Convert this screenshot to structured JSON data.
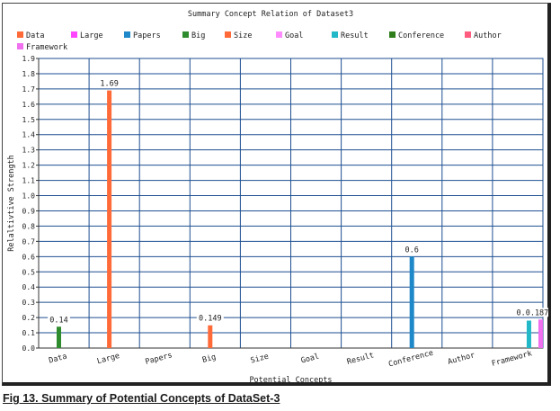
{
  "caption": "Fig 13. Summary of Potential Concepts of DataSet-3",
  "chart_data": {
    "type": "bar",
    "title": "Summary Concept Relation of Dataset3",
    "xlabel": "Potential Concepts",
    "ylabel": "Relaltivtive Strength",
    "ylim": [
      0,
      1.9
    ],
    "y_ticks": [
      "0.0",
      "0.1",
      "0.2",
      "0.3",
      "0.4",
      "0.5",
      "0.6",
      "0.7",
      "0.8",
      "0.9",
      "1.0",
      "1.1",
      "1.2",
      "1.3",
      "1.4",
      "1.5",
      "1.6",
      "1.7",
      "1.8",
      "1.9"
    ],
    "grid": true,
    "legend_position": "top",
    "categories": [
      "Data",
      "Large",
      "Papers",
      "Big",
      "Size",
      "Goal",
      "Result",
      "Conference",
      "Author",
      "Framework"
    ],
    "series": [
      {
        "name": "Data",
        "color": "#ff6a38",
        "values": [
          null,
          1.69,
          null,
          null,
          null,
          null,
          null,
          null,
          null,
          null
        ]
      },
      {
        "name": "Large",
        "color": "#ff45ff",
        "values": [
          null,
          null,
          null,
          null,
          null,
          null,
          null,
          null,
          null,
          null
        ]
      },
      {
        "name": "Papers",
        "color": "#1e88c8",
        "values": [
          null,
          null,
          null,
          null,
          null,
          null,
          null,
          0.6,
          null,
          null
        ]
      },
      {
        "name": "Big",
        "color": "#2e8b2e",
        "values": [
          0.14,
          null,
          null,
          null,
          null,
          null,
          null,
          null,
          null,
          null
        ]
      },
      {
        "name": "Size",
        "color": "#ff6a38",
        "values": [
          null,
          null,
          null,
          0.149,
          null,
          null,
          null,
          null,
          null,
          null
        ]
      },
      {
        "name": "Goal",
        "color": "#ff8cff",
        "values": [
          null,
          null,
          null,
          null,
          null,
          null,
          null,
          null,
          null,
          null
        ]
      },
      {
        "name": "Result",
        "color": "#22b8c8",
        "values": [
          null,
          null,
          null,
          null,
          null,
          null,
          null,
          null,
          null,
          0.18
        ]
      },
      {
        "name": "Conference",
        "color": "#2e7d1a",
        "values": [
          null,
          null,
          null,
          null,
          null,
          null,
          null,
          null,
          null,
          null
        ]
      },
      {
        "name": "Author",
        "color": "#ff5c80",
        "values": [
          null,
          null,
          null,
          null,
          null,
          null,
          null,
          null,
          null,
          null
        ]
      },
      {
        "name": "Framework",
        "color": "#f070f0",
        "values": [
          null,
          null,
          null,
          null,
          null,
          null,
          null,
          null,
          null,
          0.1872
        ]
      }
    ],
    "data_labels": [
      {
        "category": "Data",
        "text": "0.14"
      },
      {
        "category": "Large",
        "text": "1.69"
      },
      {
        "category": "Big",
        "text": "0.149"
      },
      {
        "category": "Conference",
        "text": "0.6"
      },
      {
        "category": "Framework",
        "text": "0.0.1872"
      }
    ]
  }
}
